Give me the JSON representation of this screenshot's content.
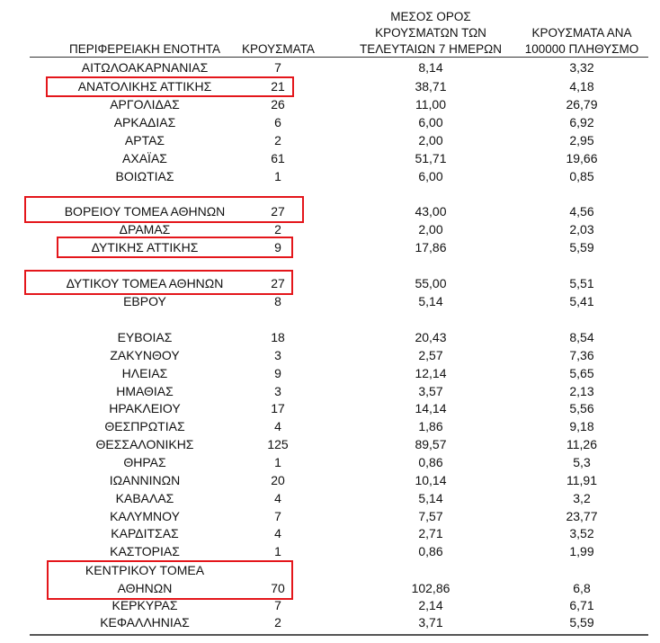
{
  "headers": {
    "region": "ΠΕΡΙΦΕΡΕΙΑΚΗ ΕΝΟΤΗΤΑ",
    "cases": "ΚΡΟΥΣΜΑΤΑ",
    "avg_line1": "ΜΕΣΟΣ ΟΡΟΣ",
    "avg_line2": "ΚΡΟΥΣΜΑΤΩΝ ΤΩΝ",
    "avg_line3": "ΤΕΛΕΥΤΑΙΩΝ 7 ΗΜΕΡΩΝ",
    "per_line1": "ΚΡΟΥΣΜΑΤΑ ΑΝΑ",
    "per_line2": "100000 ΠΛΗΘΥΣΜΟ"
  },
  "rows": [
    {
      "region": "ΑΙΤΩΛΟΑΚΑΡΝΑΝΙΑΣ",
      "cases": "7",
      "avg": "8,14",
      "per": "3,32"
    },
    {
      "region": "ΑΝΑΤΟΛΙΚΗΣ ΑΤΤΙΚΗΣ",
      "cases": "21",
      "avg": "38,71",
      "per": "4,18"
    },
    {
      "region": "ΑΡΓΟΛΙΔΑΣ",
      "cases": "26",
      "avg": "11,00",
      "per": "26,79"
    },
    {
      "region": "ΑΡΚΑΔΙΑΣ",
      "cases": "6",
      "avg": "6,00",
      "per": "6,92"
    },
    {
      "region": "ΑΡΤΑΣ",
      "cases": "2",
      "avg": "2,00",
      "per": "2,95"
    },
    {
      "region": "ΑΧΑΪΑΣ",
      "cases": "61",
      "avg": "51,71",
      "per": "19,66"
    },
    {
      "region": "ΒΟΙΩΤΙΑΣ",
      "cases": "1",
      "avg": "6,00",
      "per": "0,85"
    },
    {
      "region": "ΒΟΡΕΙΟΥ ΤΟΜΕΑ ΑΘΗΝΩΝ",
      "cases": "27",
      "avg": "43,00",
      "per": "4,56"
    },
    {
      "region": "ΔΡΑΜΑΣ",
      "cases": "2",
      "avg": "2,00",
      "per": "2,03"
    },
    {
      "region": "ΔΥΤΙΚΗΣ ΑΤΤΙΚΗΣ",
      "cases": "9",
      "avg": "17,86",
      "per": "5,59"
    },
    {
      "region": "ΔΥΤΙΚΟΥ ΤΟΜΕΑ ΑΘΗΝΩΝ",
      "cases": "27",
      "avg": "55,00",
      "per": "5,51"
    },
    {
      "region": "ΕΒΡΟΥ",
      "cases": "8",
      "avg": "5,14",
      "per": "5,41"
    },
    {
      "region": "ΕΥΒΟΙΑΣ",
      "cases": "18",
      "avg": "20,43",
      "per": "8,54"
    },
    {
      "region": "ΖΑΚΥΝΘΟΥ",
      "cases": "3",
      "avg": "2,57",
      "per": "7,36"
    },
    {
      "region": "ΗΛΕΙΑΣ",
      "cases": "9",
      "avg": "12,14",
      "per": "5,65"
    },
    {
      "region": "ΗΜΑΘΙΑΣ",
      "cases": "3",
      "avg": "3,57",
      "per": "2,13"
    },
    {
      "region": "ΗΡΑΚΛΕΙΟΥ",
      "cases": "17",
      "avg": "14,14",
      "per": "5,56"
    },
    {
      "region": "ΘΕΣΠΡΩΤΙΑΣ",
      "cases": "4",
      "avg": "1,86",
      "per": "9,18"
    },
    {
      "region": "ΘΕΣΣΑΛΟΝΙΚΗΣ",
      "cases": "125",
      "avg": "89,57",
      "per": "11,26"
    },
    {
      "region": "ΘΗΡΑΣ",
      "cases": "1",
      "avg": "0,86",
      "per": "5,3"
    },
    {
      "region": "ΙΩΑΝΝΙΝΩΝ",
      "cases": "20",
      "avg": "10,14",
      "per": "11,91"
    },
    {
      "region": "ΚΑΒΑΛΑΣ",
      "cases": "4",
      "avg": "5,14",
      "per": "3,2"
    },
    {
      "region": "ΚΑΛΥΜΝΟΥ",
      "cases": "7",
      "avg": "7,57",
      "per": "23,77"
    },
    {
      "region": "ΚΑΡΔΙΤΣΑΣ",
      "cases": "4",
      "avg": "2,71",
      "per": "3,52"
    },
    {
      "region": "ΚΑΣΤΟΡΙΑΣ",
      "cases": "1",
      "avg": "0,86",
      "per": "1,99"
    },
    {
      "region": "ΚΕΝΤΡΙΚΟΥ ΤΟΜΕΑ",
      "cases": "",
      "avg": "",
      "per": ""
    },
    {
      "region": "ΑΘΗΝΩΝ",
      "cases": "70",
      "avg": "102,86",
      "per": "6,8"
    },
    {
      "region": "ΚΕΡΚΥΡΑΣ",
      "cases": "7",
      "avg": "2,14",
      "per": "6,71"
    },
    {
      "region": "ΚΕΦΑΛΛΗΝΙΑΣ",
      "cases": "2",
      "avg": "3,71",
      "per": "5,59"
    }
  ],
  "highlight_color": "#e4161b"
}
